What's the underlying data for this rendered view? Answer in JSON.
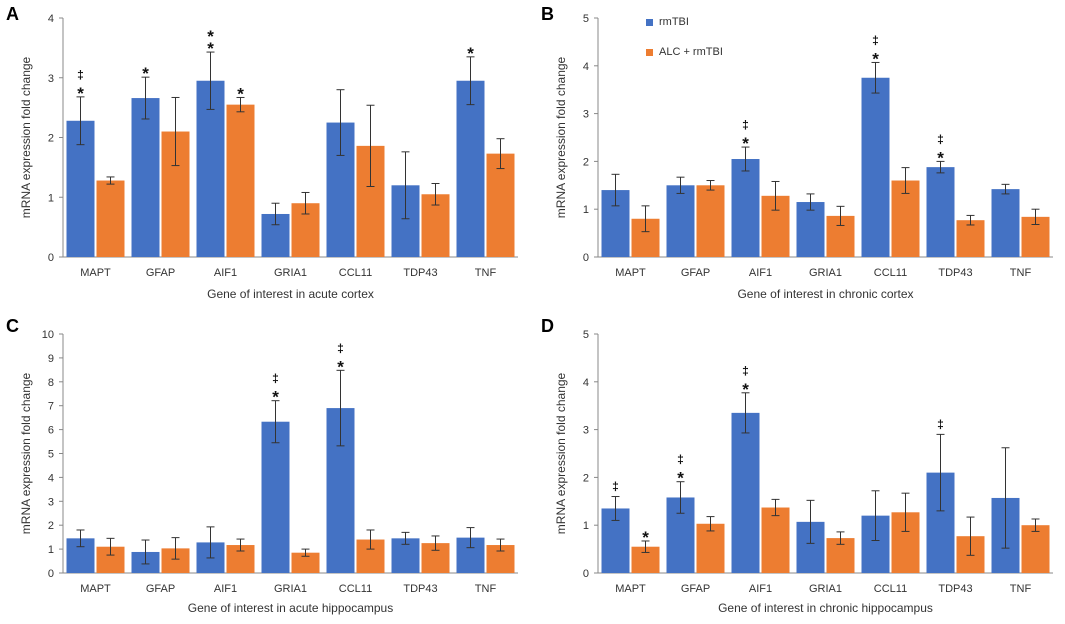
{
  "colors": {
    "rmTBI": "#4472C4",
    "ALC": "#ED7D31",
    "axis": "#888888",
    "error": "#333333"
  },
  "legend": {
    "items": [
      "rmTBI",
      "ALC + rmTBI"
    ]
  },
  "chart_data": [
    {
      "panel": "A",
      "type": "bar",
      "title": "",
      "xlabel": "Gene of interest in acute cortex",
      "ylabel": "mRNA expression fold change",
      "ylim": [
        0,
        4
      ],
      "yticks": [
        0,
        1,
        2,
        3,
        4
      ],
      "categories": [
        "MAPT",
        "GFAP",
        "AIF1",
        "GRIA1",
        "CCL11",
        "TDP43",
        "TNF"
      ],
      "series": [
        {
          "name": "rmTBI",
          "values": [
            2.28,
            2.66,
            2.95,
            0.72,
            2.25,
            1.2,
            2.95
          ],
          "errors": [
            0.4,
            0.35,
            0.48,
            0.18,
            0.55,
            0.56,
            0.4
          ]
        },
        {
          "name": "ALC + rmTBI",
          "values": [
            1.28,
            2.1,
            2.55,
            0.9,
            1.86,
            1.05,
            1.73
          ],
          "errors": [
            0.06,
            0.57,
            0.12,
            0.18,
            0.68,
            0.18,
            0.25
          ]
        }
      ],
      "annotations": [
        {
          "category": "MAPT",
          "series": 0,
          "marks": [
            "‡",
            "*"
          ]
        },
        {
          "category": "GFAP",
          "series": 0,
          "marks": [
            "*"
          ]
        },
        {
          "category": "AIF1",
          "series": 0,
          "marks": [
            "*",
            "*"
          ]
        },
        {
          "category": "AIF1",
          "series": 1,
          "marks": [
            "*"
          ]
        },
        {
          "category": "TNF",
          "series": 0,
          "marks": [
            "*"
          ]
        }
      ]
    },
    {
      "panel": "B",
      "type": "bar",
      "title": "",
      "xlabel": "Gene of interest in chronic cortex",
      "ylabel": "mRNA expression fold change",
      "ylim": [
        0,
        5
      ],
      "yticks": [
        0,
        1,
        2,
        3,
        4,
        5
      ],
      "categories": [
        "MAPT",
        "GFAP",
        "AIF1",
        "GRIA1",
        "CCL11",
        "TDP43",
        "TNF"
      ],
      "series": [
        {
          "name": "rmTBI",
          "values": [
            1.4,
            1.5,
            2.05,
            1.15,
            3.75,
            1.88,
            1.42
          ],
          "errors": [
            0.33,
            0.17,
            0.25,
            0.17,
            0.32,
            0.12,
            0.1
          ]
        },
        {
          "name": "ALC + rmTBI",
          "values": [
            0.8,
            1.5,
            1.28,
            0.86,
            1.6,
            0.77,
            0.84
          ],
          "errors": [
            0.27,
            0.1,
            0.3,
            0.2,
            0.27,
            0.1,
            0.16
          ]
        }
      ],
      "annotations": [
        {
          "category": "AIF1",
          "series": 0,
          "marks": [
            "‡",
            "*"
          ]
        },
        {
          "category": "CCL11",
          "series": 0,
          "marks": [
            "‡",
            "*"
          ]
        },
        {
          "category": "TDP43",
          "series": 0,
          "marks": [
            "‡",
            "*"
          ]
        }
      ]
    },
    {
      "panel": "C",
      "type": "bar",
      "title": "",
      "xlabel": "Gene of interest in acute hippocampus",
      "ylabel": "mRNA expression fold change",
      "ylim": [
        0,
        10
      ],
      "yticks": [
        0,
        1,
        2,
        3,
        4,
        5,
        6,
        7,
        8,
        9,
        10
      ],
      "categories": [
        "MAPT",
        "GFAP",
        "AIF1",
        "GRIA1",
        "CCL11",
        "TDP43",
        "TNF"
      ],
      "series": [
        {
          "name": "rmTBI",
          "values": [
            1.45,
            0.88,
            1.28,
            6.33,
            6.9,
            1.45,
            1.48
          ],
          "errors": [
            0.35,
            0.5,
            0.65,
            0.88,
            1.58,
            0.25,
            0.42
          ]
        },
        {
          "name": "ALC + rmTBI",
          "values": [
            1.1,
            1.03,
            1.17,
            0.85,
            1.4,
            1.25,
            1.17
          ],
          "errors": [
            0.35,
            0.45,
            0.25,
            0.15,
            0.4,
            0.3,
            0.25
          ]
        }
      ],
      "annotations": [
        {
          "category": "GRIA1",
          "series": 0,
          "marks": [
            "‡",
            "*"
          ]
        },
        {
          "category": "CCL11",
          "series": 0,
          "marks": [
            "‡",
            "*"
          ]
        }
      ]
    },
    {
      "panel": "D",
      "type": "bar",
      "title": "",
      "xlabel": "Gene of interest in chronic hippocampus",
      "ylabel": "mRNA expression fold change",
      "ylim": [
        0,
        5
      ],
      "yticks": [
        0,
        1,
        2,
        3,
        4,
        5
      ],
      "categories": [
        "MAPT",
        "GFAP",
        "AIF1",
        "GRIA1",
        "CCL11",
        "TDP43",
        "TNF"
      ],
      "series": [
        {
          "name": "rmTBI",
          "values": [
            1.35,
            1.58,
            3.35,
            1.07,
            1.2,
            2.1,
            1.57
          ],
          "errors": [
            0.25,
            0.33,
            0.42,
            0.45,
            0.52,
            0.8,
            1.05
          ]
        },
        {
          "name": "ALC + rmTBI",
          "values": [
            0.55,
            1.03,
            1.37,
            0.73,
            1.27,
            0.77,
            1.0
          ],
          "errors": [
            0.12,
            0.15,
            0.17,
            0.13,
            0.4,
            0.4,
            0.13
          ]
        }
      ],
      "annotations": [
        {
          "category": "MAPT",
          "series": 0,
          "marks": [
            "‡"
          ]
        },
        {
          "category": "MAPT",
          "series": 1,
          "marks": [
            "*"
          ]
        },
        {
          "category": "GFAP",
          "series": 0,
          "marks": [
            "‡",
            "*"
          ]
        },
        {
          "category": "AIF1",
          "series": 0,
          "marks": [
            "‡",
            "*"
          ]
        },
        {
          "category": "TDP43",
          "series": 0,
          "marks": [
            "‡"
          ]
        }
      ]
    }
  ]
}
